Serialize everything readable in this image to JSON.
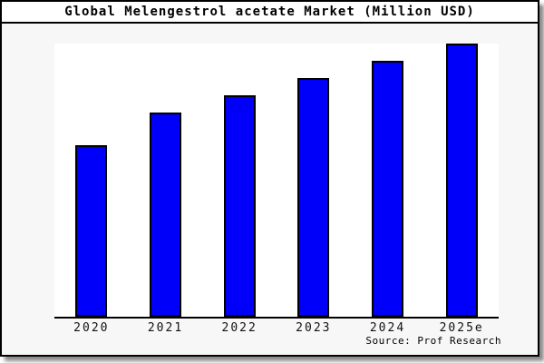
{
  "title": "Global Melengestrol acetate Market (Million USD)",
  "source_note": "Source: Prof Research",
  "colors": {
    "bar_fill": "#0000fa",
    "bar_border": "#000000",
    "frame_border": "#000000",
    "chart_background": "#f7f7f7",
    "plot_background": "#ffffff"
  },
  "chart_data": {
    "type": "bar",
    "title": "Global Melengestrol acetate Market (Million USD)",
    "unit": "Million USD",
    "categories": [
      "2020",
      "2021",
      "2022",
      "2023",
      "2024",
      "2025e"
    ],
    "values": [
      62.8,
      74.8,
      81.1,
      87.4,
      93.7,
      100
    ],
    "ylim": [
      0,
      100
    ],
    "y_axis": "unlabeled - no ticks, gridlines or value labels shown; values are relative estimates scaled so 2025e = 100",
    "grid": false,
    "legend": false,
    "bar_color": "#0000fa",
    "source_note": "Source: Prof Research"
  }
}
